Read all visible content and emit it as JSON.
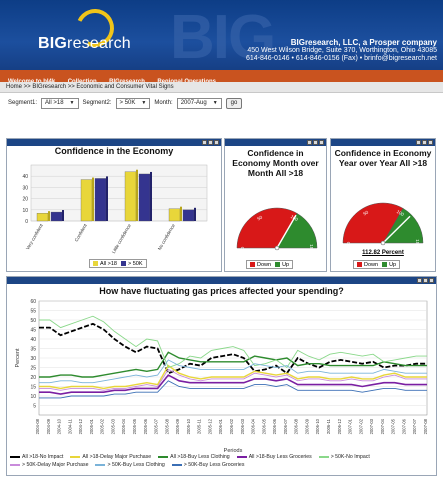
{
  "header": {
    "logo_bold": "BIG",
    "logo_light": "research",
    "big_watermark": "BIG",
    "company": "BIGresearch, LLC, a Prosper company",
    "address": "450 West Wilson Bridge, Suite 370, Worthington, Ohio 43085",
    "phone": "614-846-0146 • 614-846-0156 (Fax) • brinfo@bigresearch.net"
  },
  "nav": {
    "items": [
      "Welcome to bl4k",
      "Collection",
      "BIGresearch",
      "Regional Operations"
    ]
  },
  "breadcrumb": "Home >> BIGresearch >> Economic and Consumer Vital Signs",
  "filters": {
    "segment1_label": "Segment1:",
    "segment1_value": "All >18",
    "segment2_label": "Segment2:",
    "segment2_value": "> 50K",
    "month_label": "Month:",
    "month_value": "2007-Aug",
    "go_label": "go"
  },
  "colors": {
    "header_blue": "#1c4f9e",
    "nav_orange": "#c9531f",
    "panel_bar": "#1c4585",
    "series_yellow": "#e8d63a",
    "series_navy": "#34348f",
    "down_red": "#d81818",
    "up_green": "#2e8b2e"
  },
  "panels": {
    "confidence_economy": {
      "title": "Confidence in the Economy",
      "legend": [
        "All >18",
        "> 50K"
      ]
    },
    "month_over_month": {
      "title": "Confidence in Economy Month over Month All >18",
      "legend": [
        "Down",
        "Up"
      ]
    },
    "year_over_year": {
      "title": "Confidence in Economy Year over Year All >18",
      "percent_label": "112.82 Percent",
      "legend": [
        "Down",
        "Up"
      ]
    },
    "gas_prices": {
      "title": "How have fluctuating gas prices affected your spending?"
    }
  },
  "chart_data": [
    {
      "type": "bar",
      "title": "Confidence in the Economy",
      "categories": [
        "Very confident",
        "Confident",
        "Little confidence",
        "No confidence"
      ],
      "series": [
        {
          "name": "All >18",
          "values": [
            7,
            37,
            44,
            11
          ]
        },
        {
          "name": "> 50K",
          "values": [
            8,
            38,
            42,
            10
          ]
        }
      ],
      "ylim": [
        0,
        50
      ],
      "yticks": [
        0,
        10,
        20,
        30,
        40
      ]
    },
    {
      "type": "gauge",
      "title": "Confidence in Economy Month over Month All >18",
      "ticks": [
        "0",
        "50",
        "100",
        "150"
      ],
      "value": 100,
      "range": [
        0,
        150
      ]
    },
    {
      "type": "gauge",
      "title": "Confidence in Economy Year over Year All >18",
      "ticks": [
        "0",
        "50",
        "100",
        "150"
      ],
      "value": 112.82,
      "range": [
        0,
        150
      ]
    },
    {
      "type": "line",
      "title": "How have fluctuating gas prices affected your spending?",
      "xlabel": "Periods",
      "ylabel": "Percent",
      "ylim": [
        0,
        60
      ],
      "yticks": [
        5,
        10,
        15,
        20,
        25,
        30,
        35,
        40,
        45,
        50,
        55,
        60
      ],
      "x": [
        "2004-08",
        "2004-09",
        "2004-10",
        "2004-11",
        "2004-12",
        "2005-01",
        "2005-02",
        "2005-03",
        "2005-04",
        "2005-05",
        "2005-06",
        "2005-07",
        "2005-08",
        "2005-09",
        "2005-10",
        "2005-11",
        "2005-12",
        "2006-01",
        "2006-02",
        "2006-03",
        "2006-04",
        "2006-05",
        "2006-06",
        "2006-07",
        "2006-08",
        "2006-09",
        "2006-10",
        "2006-11",
        "2006-12",
        "2007-01",
        "2007-02",
        "2007-03",
        "2007-04",
        "2007-05",
        "2007-06",
        "2007-07",
        "2007-08"
      ],
      "series": [
        {
          "name": "All >18-No Impact",
          "values": [
            46,
            46,
            42,
            44,
            46,
            48,
            45,
            40,
            36,
            33,
            36,
            35,
            22,
            24,
            27,
            26,
            30,
            31,
            32,
            30,
            23,
            24,
            26,
            22,
            30,
            27,
            25,
            28,
            29,
            28,
            27,
            28,
            25,
            26,
            26,
            27,
            27
          ]
        },
        {
          "name": "All >18-Delay Major Purchase",
          "values": [
            15,
            15,
            14,
            15,
            15,
            15,
            14,
            15,
            15,
            16,
            17,
            16,
            26,
            22,
            20,
            19,
            20,
            20,
            20,
            20,
            23,
            22,
            21,
            22,
            19,
            20,
            20,
            19,
            19,
            20,
            19,
            19,
            21,
            22,
            20,
            20,
            20
          ]
        },
        {
          "name": "All >18-Buy Less Clothing",
          "values": [
            20,
            20,
            21,
            21,
            20,
            20,
            21,
            22,
            23,
            24,
            23,
            24,
            33,
            30,
            29,
            28,
            28,
            28,
            28,
            28,
            31,
            30,
            29,
            30,
            26,
            27,
            27,
            26,
            26,
            26,
            26,
            26,
            28,
            27,
            26,
            26,
            26
          ]
        },
        {
          "name": "All >18-Buy Less Groceries",
          "values": [
            12,
            12,
            11,
            12,
            12,
            12,
            12,
            13,
            13,
            14,
            14,
            14,
            21,
            18,
            17,
            17,
            17,
            17,
            17,
            17,
            19,
            19,
            18,
            19,
            16,
            16,
            16,
            16,
            16,
            16,
            15,
            16,
            17,
            17,
            16,
            16,
            16
          ]
        },
        {
          "name": "> 50K-No Impact",
          "values": [
            50,
            50,
            46,
            48,
            50,
            52,
            49,
            44,
            40,
            36,
            40,
            39,
            25,
            27,
            31,
            30,
            34,
            35,
            36,
            34,
            26,
            27,
            29,
            25,
            34,
            31,
            29,
            32,
            33,
            32,
            31,
            32,
            28,
            29,
            30,
            31,
            31
          ]
        },
        {
          "name": "> 50K-Delay Major Purchase",
          "values": [
            14,
            14,
            13,
            14,
            14,
            14,
            13,
            14,
            14,
            15,
            16,
            15,
            24,
            21,
            19,
            18,
            19,
            19,
            19,
            19,
            22,
            21,
            20,
            21,
            18,
            19,
            19,
            18,
            18,
            19,
            18,
            18,
            20,
            21,
            19,
            19,
            19
          ]
        },
        {
          "name": "> 50K-Buy Less Clothing",
          "values": [
            17,
            17,
            18,
            18,
            17,
            17,
            18,
            19,
            20,
            21,
            20,
            21,
            29,
            26,
            25,
            24,
            24,
            24,
            24,
            24,
            27,
            26,
            25,
            26,
            22,
            23,
            23,
            22,
            22,
            22,
            22,
            22,
            24,
            23,
            22,
            22,
            22
          ]
        },
        {
          "name": "> 50K-Buy Less Groceries",
          "values": [
            9,
            9,
            9,
            10,
            10,
            10,
            10,
            11,
            11,
            12,
            12,
            12,
            18,
            15,
            14,
            14,
            14,
            14,
            14,
            14,
            16,
            16,
            15,
            16,
            13,
            13,
            13,
            13,
            13,
            13,
            12,
            13,
            14,
            14,
            13,
            13,
            13
          ]
        }
      ]
    }
  ]
}
